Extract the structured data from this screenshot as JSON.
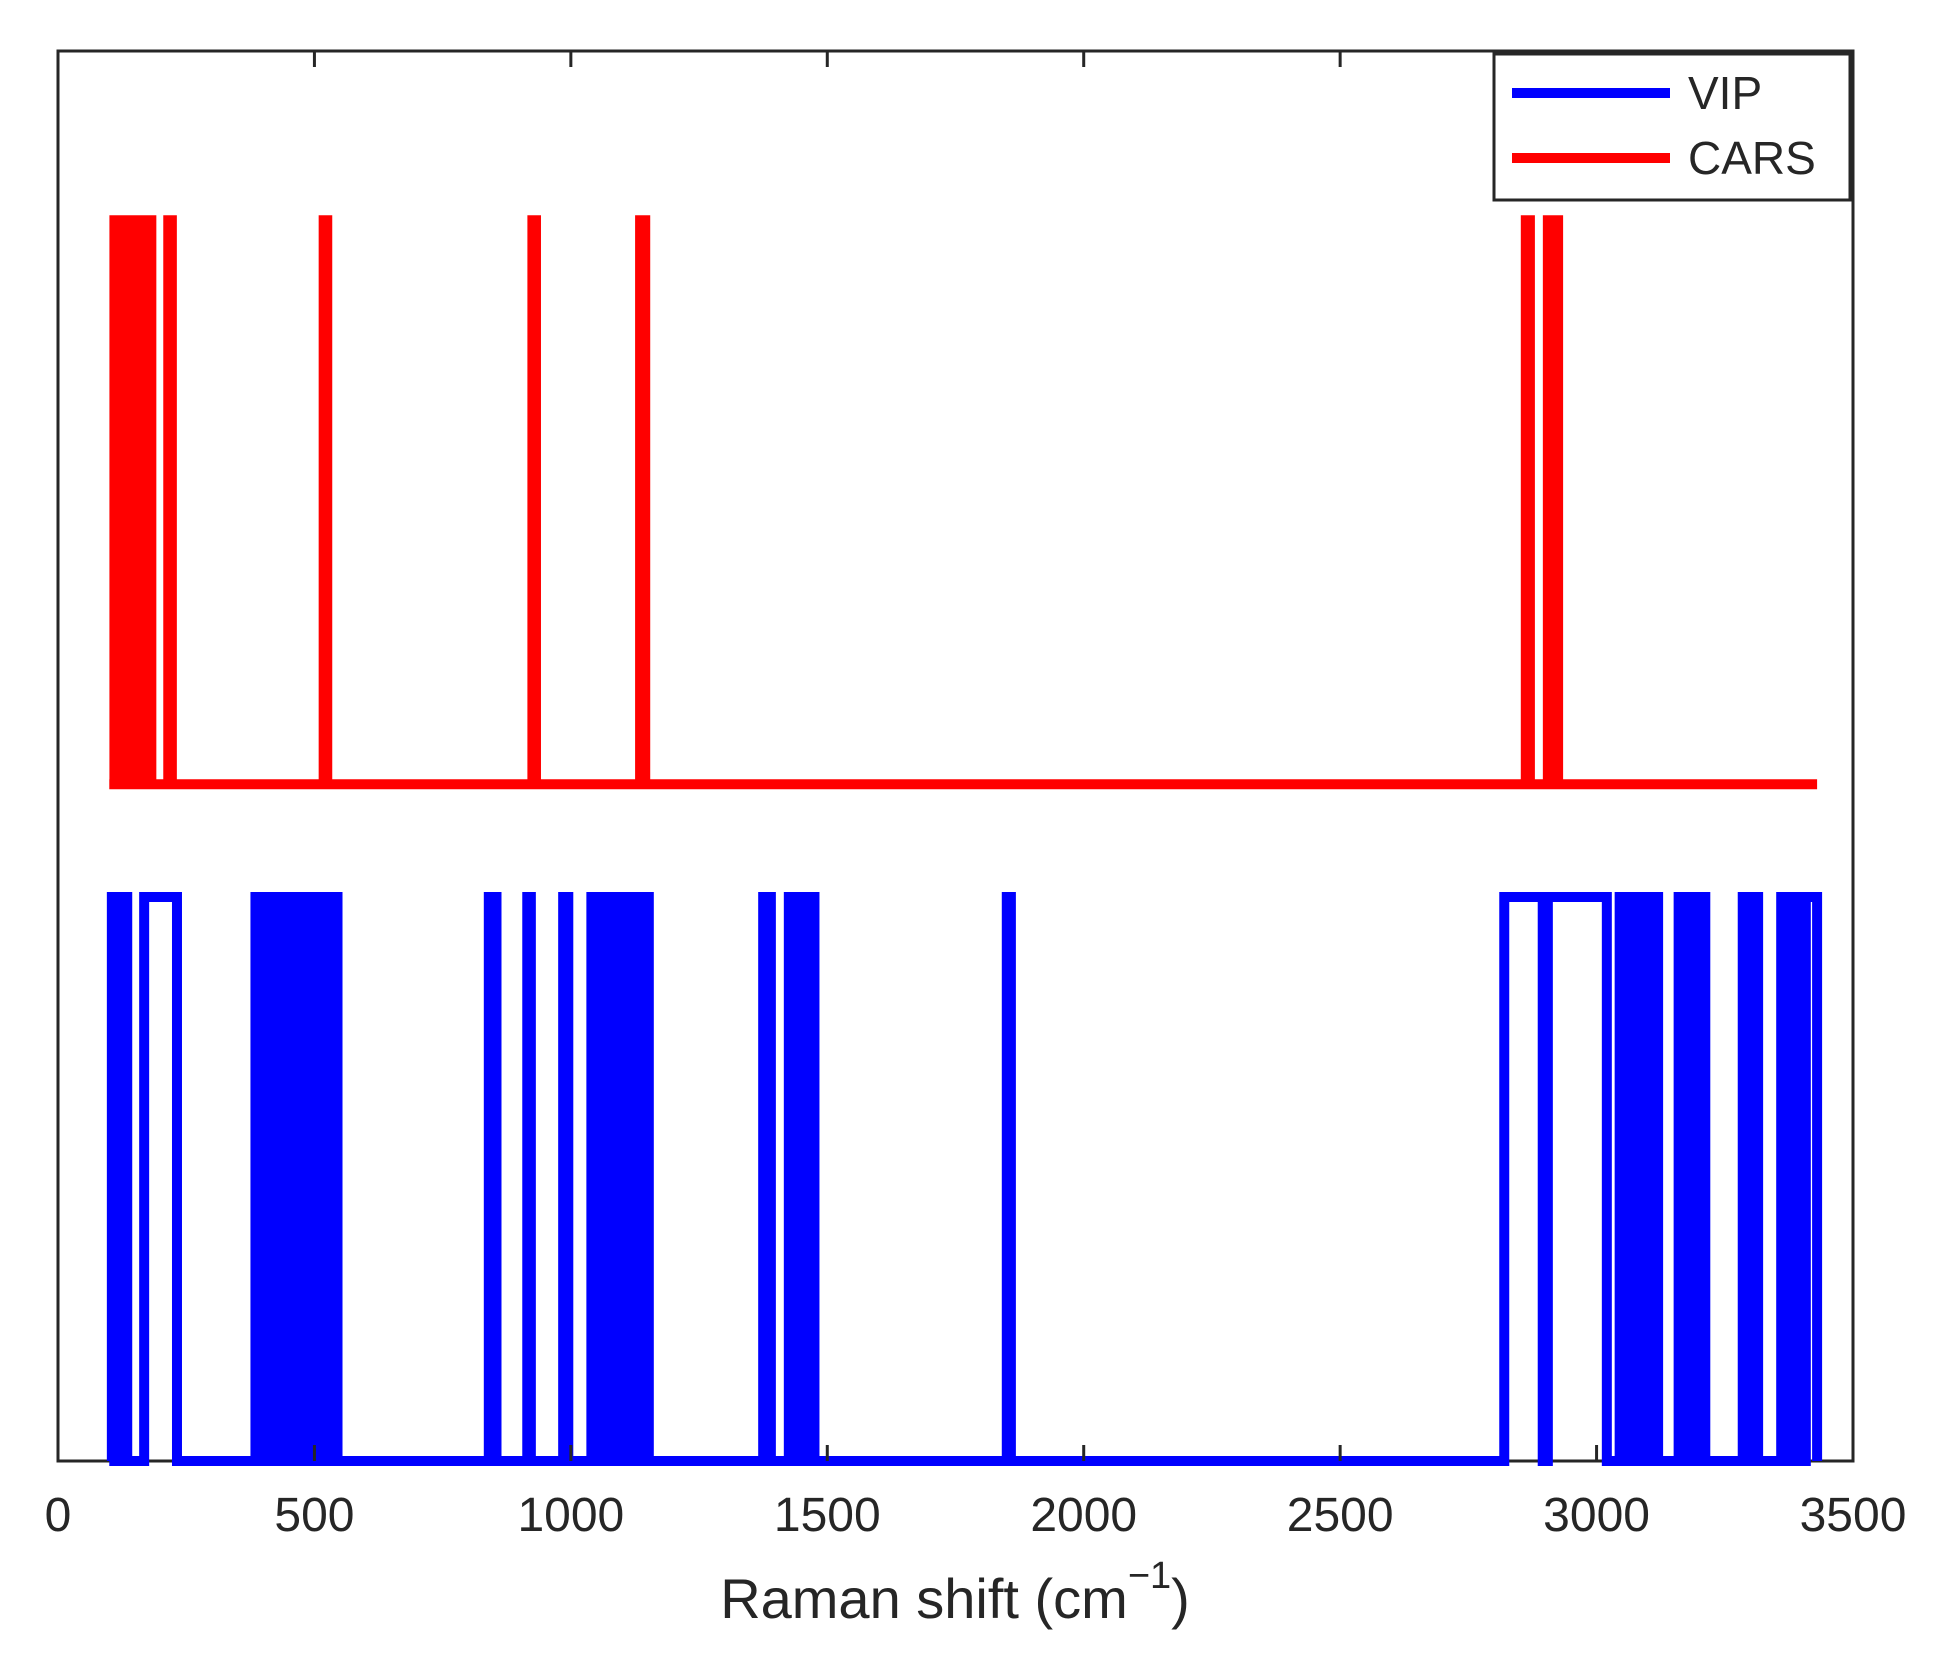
{
  "chart_data": {
    "type": "line",
    "title": "",
    "xlabel": "Raman shift (cm",
    "xlabel_exponent": "−1",
    "xlabel_suffix": ")",
    "ylabel": "",
    "xlim": [
      0,
      3500
    ],
    "ylim": [
      0,
      1
    ],
    "x_ticks": [
      0,
      500,
      1000,
      1500,
      2000,
      2500,
      3000,
      3500
    ],
    "x_tick_labels": [
      "0",
      "500",
      "1000",
      "1500",
      "2000",
      "2500",
      "3000",
      "3500"
    ],
    "grid": false,
    "legend_position": "top-right",
    "series": [
      {
        "name": "VIP",
        "color": "#0000ff",
        "baseline": 0,
        "level": 0.4,
        "x_range": [
          100,
          3430
        ],
        "selected_ranges": [
          [
            105,
            112
          ],
          [
            125,
            135
          ],
          [
            168,
            232
          ],
          [
            385,
            392
          ],
          [
            398,
            403
          ],
          [
            410,
            415
          ],
          [
            420,
            425
          ],
          [
            430,
            435
          ],
          [
            440,
            445
          ],
          [
            450,
            455
          ],
          [
            460,
            465
          ],
          [
            470,
            475
          ],
          [
            480,
            485
          ],
          [
            490,
            495
          ],
          [
            500,
            505
          ],
          [
            510,
            515
          ],
          [
            520,
            530
          ],
          [
            538,
            545
          ],
          [
            840,
            855
          ],
          [
            915,
            922
          ],
          [
            985,
            995
          ],
          [
            1040,
            1050
          ],
          [
            1058,
            1062
          ],
          [
            1070,
            1075
          ],
          [
            1082,
            1088
          ],
          [
            1095,
            1100
          ],
          [
            1110,
            1120
          ],
          [
            1128,
            1135
          ],
          [
            1142,
            1152
          ],
          [
            1375,
            1390
          ],
          [
            1425,
            1432
          ],
          [
            1438,
            1445
          ],
          [
            1450,
            1458
          ],
          [
            1465,
            1475
          ],
          [
            1850,
            1858
          ],
          [
            2820,
            2895
          ],
          [
            2905,
            3020
          ],
          [
            3045,
            3058
          ],
          [
            3068,
            3075
          ],
          [
            3085,
            3090
          ],
          [
            3098,
            3105
          ],
          [
            3112,
            3120
          ],
          [
            3160,
            3168
          ],
          [
            3175,
            3182
          ],
          [
            3190,
            3196
          ],
          [
            3205,
            3212
          ],
          [
            3285,
            3300
          ],
          [
            3308,
            3315
          ],
          [
            3360,
            3368
          ],
          [
            3375,
            3382
          ],
          [
            3392,
            3398
          ],
          [
            3408,
            3430
          ]
        ]
      },
      {
        "name": "CARS",
        "color": "#ff0000",
        "baseline": 0.48,
        "level": 0.88,
        "x_range": [
          100,
          3430
        ],
        "selected_ranges": [
          [
            110,
            114
          ],
          [
            118,
            122
          ],
          [
            126,
            130
          ],
          [
            134,
            138
          ],
          [
            142,
            146
          ],
          [
            150,
            154
          ],
          [
            160,
            164
          ],
          [
            170,
            174
          ],
          [
            178,
            182
          ],
          [
            215,
            222
          ],
          [
            518,
            525
          ],
          [
            925,
            932
          ],
          [
            1135,
            1145
          ],
          [
            2862,
            2870
          ],
          [
            2905,
            2912
          ],
          [
            2918,
            2925
          ]
        ]
      }
    ]
  }
}
